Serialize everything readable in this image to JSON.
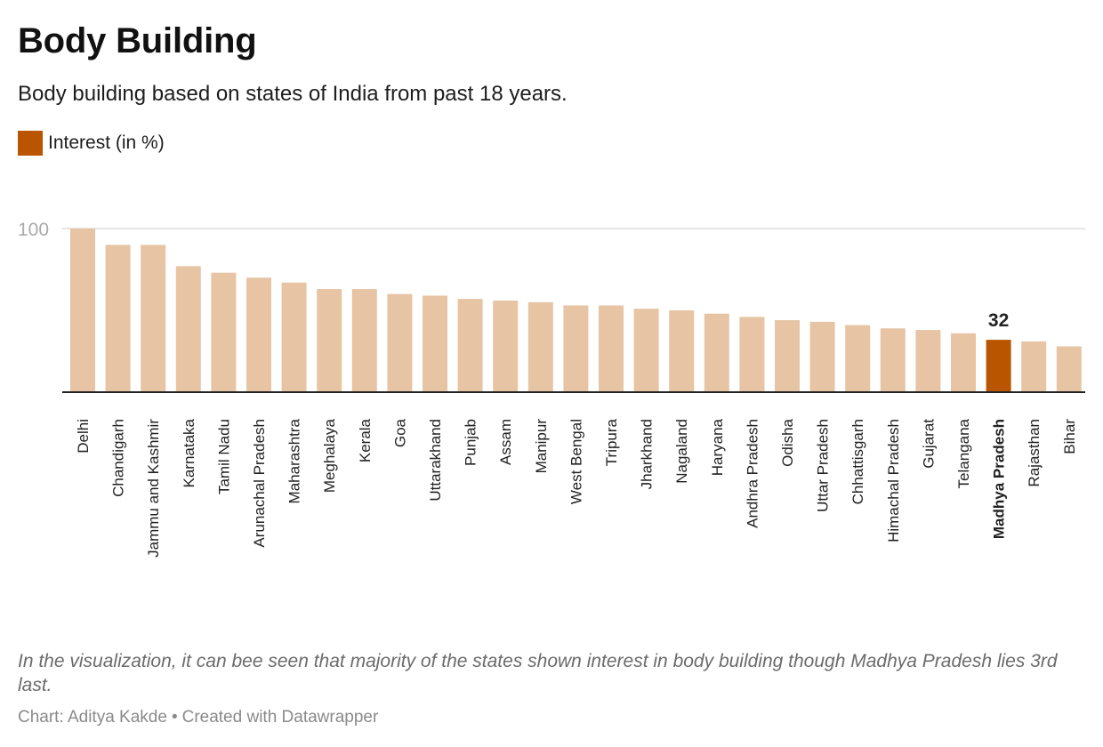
{
  "header": {
    "title": "Body Building",
    "subtitle": "Body building based on states of India from past 18 years."
  },
  "legend": {
    "label": "Interest (in %)"
  },
  "colors": {
    "bar": "#e6c4a4",
    "highlight": "#b95400",
    "grid": "#dddddd",
    "axis": "#222222",
    "tick_text": "#aaaaaa"
  },
  "chart_data": {
    "type": "bar",
    "categories": [
      "Delhi",
      "Chandigarh",
      "Jammu and Kashmir",
      "Karnataka",
      "Tamil Nadu",
      "Arunachal Pradesh",
      "Maharashtra",
      "Meghalaya",
      "Kerala",
      "Goa",
      "Uttarakhand",
      "Punjab",
      "Assam",
      "Manipur",
      "West Bengal",
      "Tripura",
      "Jharkhand",
      "Nagaland",
      "Haryana",
      "Andhra Pradesh",
      "Odisha",
      "Uttar Pradesh",
      "Chhattisgarh",
      "Himachal Pradesh",
      "Gujarat",
      "Telangana",
      "Madhya Pradesh",
      "Rajasthan",
      "Bihar"
    ],
    "series": [
      {
        "name": "Interest (in %)",
        "values": [
          100,
          90,
          90,
          77,
          73,
          70,
          67,
          63,
          63,
          60,
          59,
          57,
          56,
          55,
          53,
          53,
          51,
          50,
          48,
          46,
          44,
          43,
          41,
          39,
          38,
          36,
          32,
          31,
          28
        ]
      }
    ],
    "highlight": {
      "category": "Madhya Pradesh",
      "value_label": "32"
    },
    "yticks": [
      "100"
    ],
    "ylim": [
      0,
      100
    ],
    "grid": true
  },
  "notes": "In the visualization, it can bee seen that majority of the states shown interest in body building though Madhya Pradesh lies 3rd last.",
  "footer": {
    "chart_credit": "Chart: Aditya Kakde",
    "separator": "•",
    "created_with": "Created with Datawrapper"
  }
}
